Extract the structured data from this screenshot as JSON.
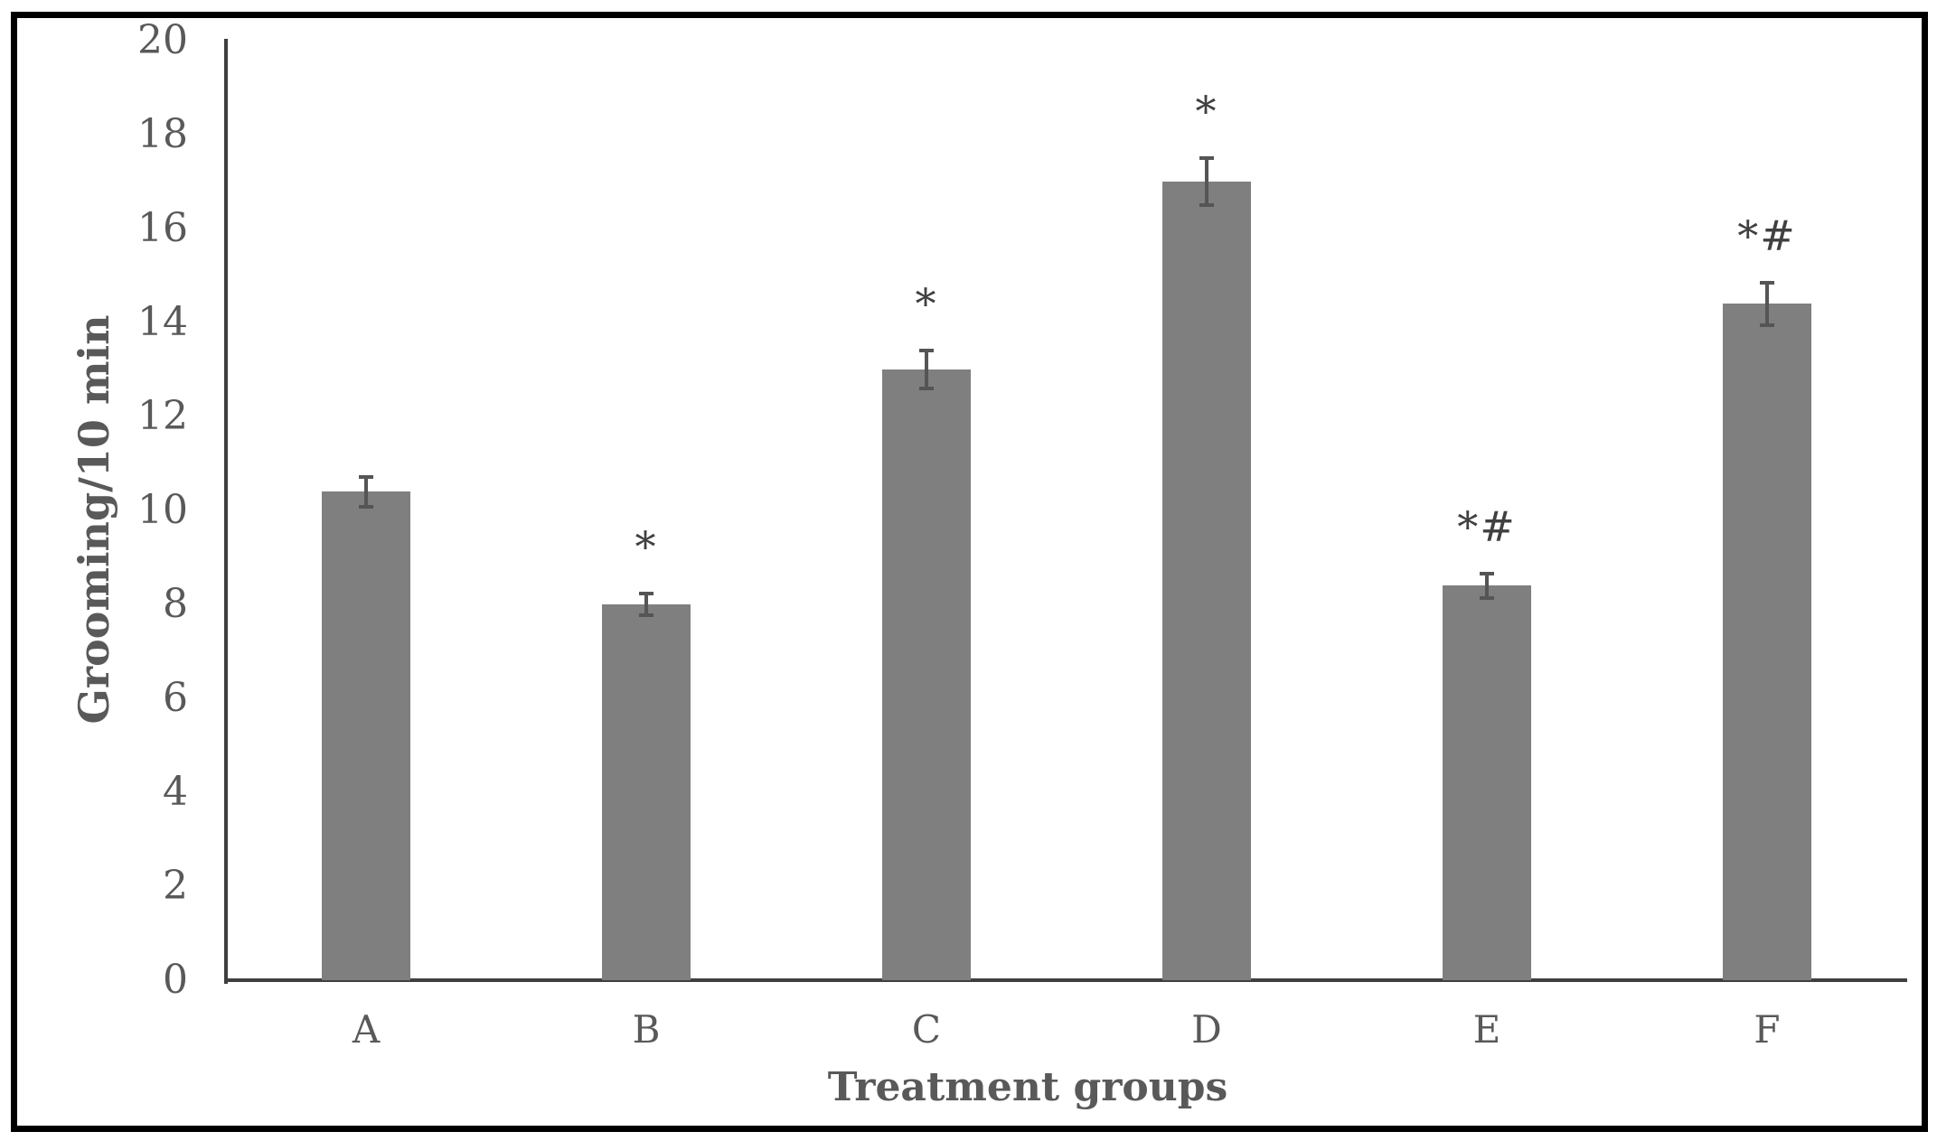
{
  "chart_data": {
    "type": "bar",
    "title": "",
    "xlabel": "Treatment groups",
    "ylabel": "Grooming/10 min",
    "categories": [
      "A",
      "B",
      "C",
      "D",
      "E",
      "F"
    ],
    "values": [
      10.4,
      8.0,
      13.0,
      17.0,
      8.4,
      14.4
    ],
    "errors": [
      0.32,
      0.23,
      0.4,
      0.5,
      0.26,
      0.45
    ],
    "annotations": [
      "",
      "*",
      "*",
      "*",
      "*#",
      "*#"
    ],
    "ylim": [
      0,
      20
    ],
    "ytick_step": 2,
    "grid": false,
    "legend": null,
    "bar_color": "#7f7f7f",
    "error_bar_color": "#555555",
    "axis_color": "#3f3f3f",
    "text_color": "#595959",
    "annotation_color": "#404040",
    "frame_color": "#000000"
  }
}
